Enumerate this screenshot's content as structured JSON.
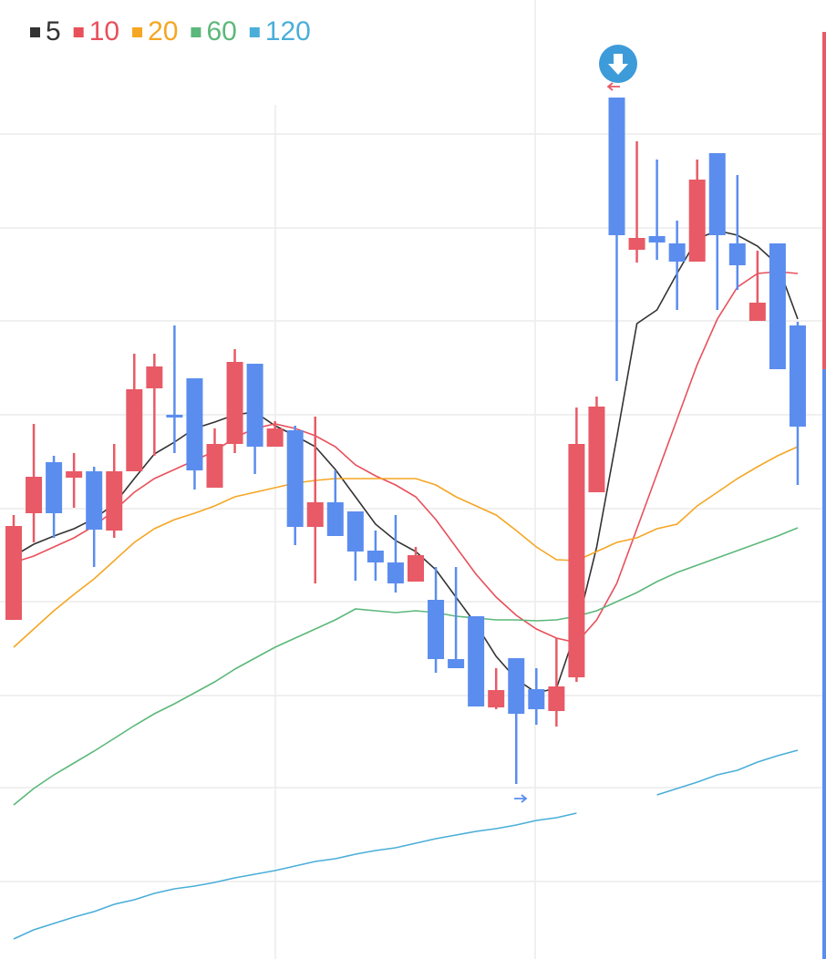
{
  "chart_data": {
    "type": "candlestick",
    "categories": [
      null,
      null,
      null,
      null,
      null,
      null,
      null,
      null,
      null,
      null,
      null,
      null,
      null,
      null,
      null,
      null,
      null,
      null,
      null,
      null,
      null,
      null,
      null,
      null,
      null,
      null,
      null,
      null,
      null,
      null,
      null,
      null,
      null,
      null,
      null,
      null,
      null,
      null,
      null,
      null
    ],
    "open": [
      37.2,
      48.9,
      54.5,
      52.8,
      53.5,
      47.0,
      53.5,
      62.6,
      59.7,
      63.7,
      51.7,
      56.5,
      65.3,
      56.2,
      58.0,
      47.4,
      50.1,
      49.1,
      44.8,
      43.5,
      41.4,
      39.4,
      32.9,
      37.6,
      27.6,
      33.0,
      29.6,
      27.2,
      30.9,
      51.2,
      94.5,
      77.8,
      79.3,
      78.5,
      76.5,
      88.4,
      78.5,
      70.0,
      78.5,
      69.5
    ],
    "high": [
      48.7,
      58.7,
      55.2,
      55.5,
      54.0,
      56.5,
      66.4,
      66.4,
      69.5,
      63.7,
      58.2,
      66.9,
      65.3,
      59.0,
      58.5,
      59.5,
      53.6,
      49.1,
      47.0,
      48.7,
      45.2,
      43.0,
      43.0,
      37.6,
      31.9,
      33.0,
      31.9,
      35.2,
      60.5,
      61.7,
      94.5,
      89.7,
      87.7,
      81.0,
      87.7,
      88.4,
      86.0,
      77.7,
      78.5,
      69.9
    ],
    "low": [
      37.2,
      45.7,
      46.2,
      49.5,
      43.0,
      46.2,
      53.5,
      55.2,
      55.5,
      51.5,
      51.7,
      55.5,
      53.2,
      56.2,
      45.4,
      41.2,
      46.4,
      41.5,
      41.5,
      40.2,
      41.4,
      31.4,
      31.9,
      27.7,
      27.4,
      19.2,
      25.7,
      25.5,
      30.4,
      51.2,
      63.4,
      76.4,
      76.7,
      71.2,
      76.5,
      71.2,
      73.4,
      70.0,
      64.7,
      52.0
    ],
    "close": [
      47.5,
      52.9,
      48.9,
      53.5,
      47.1,
      53.5,
      62.5,
      65.0,
      59.4,
      53.6,
      56.5,
      65.5,
      56.2,
      58.2,
      47.4,
      50.1,
      46.4,
      44.7,
      43.5,
      41.2,
      44.3,
      32.9,
      31.9,
      27.7,
      29.5,
      26.9,
      27.4,
      29.9,
      56.5,
      60.6,
      79.4,
      79.1,
      78.6,
      76.5,
      85.5,
      79.4,
      76.1,
      72.0,
      64.7,
      58.4
    ],
    "up_color": "#e85a66",
    "down_color": "#5b8def",
    "series": [
      {
        "name": "5",
        "color": "#333333",
        "values": [
          44.2,
          45.5,
          46.4,
          47.2,
          48.3,
          49.9,
          52.7,
          55.4,
          56.7,
          58.2,
          58.9,
          59.7,
          60.0,
          58.5,
          57.4,
          56.2,
          53.7,
          50.7,
          47.7,
          45.9,
          44.7,
          42.7,
          39.7,
          36.7,
          33.2,
          30.7,
          29.2,
          29.7,
          36.2,
          45.2,
          57.2,
          69.7,
          71.2,
          75.2,
          79.0,
          79.9,
          79.4,
          78.2,
          76.2,
          70.2
        ]
      },
      {
        "name": "10",
        "color": "#e8505b",
        "values": [
          43.5,
          44.2,
          45.2,
          46.2,
          47.5,
          49.2,
          51.2,
          52.7,
          53.7,
          54.7,
          55.7,
          57.2,
          58.2,
          58.7,
          58.2,
          57.4,
          56.2,
          54.2,
          53.0,
          52.0,
          50.7,
          48.2,
          45.2,
          42.2,
          39.7,
          37.7,
          36.2,
          35.2,
          34.7,
          37.2,
          41.2,
          47.2,
          53.2,
          59.2,
          65.2,
          70.2,
          73.7,
          75.2,
          75.4,
          75.2
        ]
      },
      {
        "name": "20",
        "color": "#f5a623",
        "values": [
          34.2,
          36.2,
          38.2,
          40.0,
          41.7,
          43.7,
          45.7,
          47.2,
          48.2,
          48.9,
          49.7,
          50.7,
          51.2,
          51.7,
          52.2,
          52.5,
          52.7,
          52.7,
          52.7,
          52.7,
          52.7,
          52.0,
          50.7,
          49.7,
          48.7,
          47.0,
          45.2,
          43.8,
          43.7,
          44.7,
          45.7,
          46.2,
          47.2,
          47.7,
          49.7,
          51.2,
          52.7,
          54.0,
          55.2,
          56.2
        ]
      },
      {
        "name": "60",
        "color": "#5cb87a",
        "values": [
          16.9,
          18.7,
          20.2,
          21.5,
          22.8,
          24.2,
          25.6,
          26.9,
          28.0,
          29.2,
          30.4,
          31.8,
          33.0,
          34.2,
          35.2,
          36.2,
          37.2,
          38.4,
          38.2,
          38.0,
          38.2,
          38.0,
          37.6,
          37.4,
          37.2,
          37.2,
          37.1,
          37.2,
          37.6,
          38.2,
          39.2,
          40.2,
          41.4,
          42.4,
          43.2,
          44.0,
          44.8,
          45.6,
          46.4,
          47.3
        ]
      },
      {
        "name": "120",
        "color": "#4aaed9",
        "values": [
          2.2,
          3.2,
          3.9,
          4.6,
          5.2,
          6.0,
          6.5,
          7.2,
          7.7,
          8.0,
          8.4,
          8.9,
          9.3,
          9.7,
          10.2,
          10.7,
          11.0,
          11.5,
          11.9,
          12.2,
          12.7,
          13.2,
          13.6,
          14.0,
          14.3,
          14.7,
          15.2,
          15.5,
          16.0,
          null,
          null,
          null,
          18.0,
          18.7,
          19.4,
          20.2,
          20.7,
          21.6,
          22.3,
          22.9
        ]
      }
    ],
    "ylim": [
      0,
      105.2
    ],
    "yticks": [
      90.5,
      80.2,
      70,
      59.7,
      49.4,
      39.2,
      28.9,
      18.8,
      8.5
    ],
    "grid": true
  }
}
